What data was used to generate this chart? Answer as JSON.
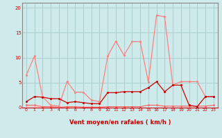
{
  "x": [
    0,
    1,
    2,
    3,
    4,
    5,
    6,
    7,
    8,
    9,
    10,
    11,
    12,
    13,
    14,
    15,
    16,
    17,
    18,
    19,
    20,
    21,
    22,
    23
  ],
  "line_rafales": [
    6.5,
    10.3,
    2.2,
    0.5,
    0.3,
    5.2,
    3.1,
    3.1,
    1.5,
    1.2,
    10.3,
    13.3,
    10.5,
    13.2,
    13.2,
    5.1,
    18.5,
    18.2,
    4.5,
    5.2,
    5.2,
    5.2,
    2.2,
    2.2
  ],
  "line_moyen": [
    1.2,
    2.2,
    2.1,
    1.8,
    1.8,
    1.0,
    1.2,
    1.0,
    0.8,
    0.8,
    3.0,
    3.0,
    3.2,
    3.2,
    3.2,
    4.0,
    5.2,
    3.2,
    4.5,
    4.5,
    0.5,
    0.2,
    2.2,
    2.2
  ],
  "line_flat1": [
    0.3,
    0.2,
    0.1,
    0.1,
    0.1,
    0.1,
    0.1,
    0.1,
    0.1,
    0.1,
    0.2,
    0.2,
    0.2,
    0.2,
    0.2,
    0.5,
    0.5,
    0.3,
    0.3,
    0.3,
    0.3,
    0.3,
    0.3,
    0.5
  ],
  "line_flat2": [
    0.5,
    0.5,
    0.2,
    0.2,
    0.1,
    0.2,
    0.2,
    0.1,
    0.1,
    0.1,
    0.2,
    0.2,
    0.2,
    0.2,
    0.2,
    0.5,
    0.5,
    0.3,
    0.3,
    0.3,
    0.3,
    0.3,
    0.3,
    0.5
  ],
  "arrow_angles": [
    225,
    202,
    202,
    225,
    225,
    202,
    202,
    202,
    202,
    202,
    180,
    202,
    225,
    202,
    225,
    180,
    180,
    180,
    180,
    180,
    180,
    180,
    180,
    180
  ],
  "bg_color": "#ceeaea",
  "grid_color": "#aacfcf",
  "line_color_rafales": "#ff8080",
  "line_color_moyen": "#cc0000",
  "line_color_flat1": "#ffbbbb",
  "line_color_flat2": "#ff5555",
  "arrow_color": "#cc0000",
  "xlabel": "Vent moyen/en rafales ( km/h )",
  "yticks": [
    0,
    5,
    10,
    15,
    20
  ],
  "xticks": [
    0,
    1,
    2,
    3,
    4,
    5,
    6,
    7,
    8,
    9,
    10,
    11,
    12,
    13,
    14,
    15,
    16,
    17,
    18,
    19,
    20,
    21,
    22,
    23
  ],
  "ylim": [
    0,
    21
  ],
  "xlim": [
    -0.5,
    23.5
  ]
}
